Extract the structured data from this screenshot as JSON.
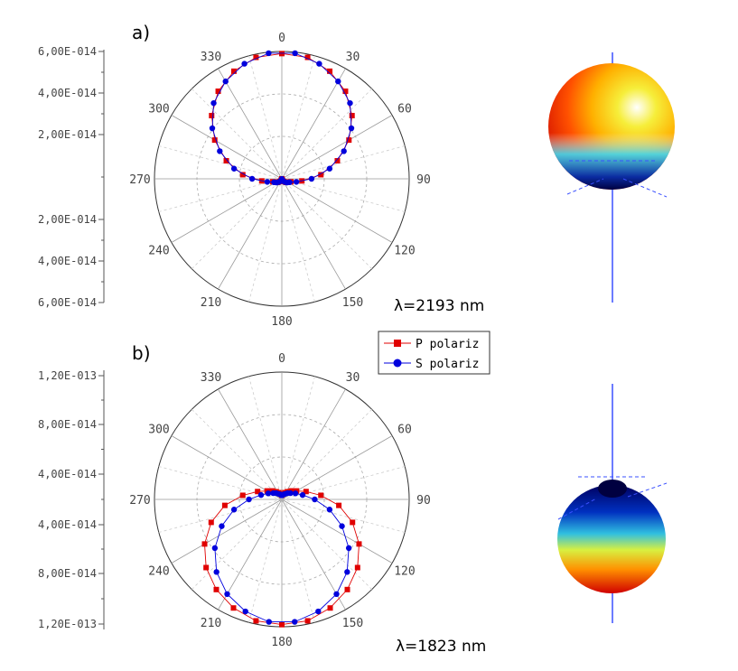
{
  "chart_data": [
    {
      "type": "polar",
      "panel_label": "a)",
      "wavelength_label": "λ=2193 nm",
      "angle_labels": [
        "0",
        "30",
        "60",
        "90",
        "120",
        "150",
        "180",
        "210",
        "240",
        "270",
        "300",
        "330"
      ],
      "radial_tick_labels_upper": [
        "6,00E-014",
        "4,00E-014",
        "2,00E-014"
      ],
      "radial_tick_labels_lower": [
        "2,00E-014",
        "4,00E-014",
        "6,00E-014"
      ],
      "r_max": 6e-14,
      "series": [
        {
          "name": "P polariz",
          "color": "#e00000",
          "marker": "square",
          "angles_deg": [
            0,
            12,
            24,
            36,
            48,
            60,
            72,
            84,
            96,
            108,
            120,
            132,
            144,
            156,
            168,
            180,
            192,
            204,
            216,
            228,
            240,
            252,
            264,
            276,
            288,
            300,
            312,
            324,
            336,
            348
          ],
          "values": [
            5.9e-14,
            5.85e-14,
            5.55e-14,
            5.1e-14,
            4.45e-14,
            3.65e-14,
            2.75e-14,
            1.85e-14,
            9.5e-15,
            4.5e-15,
            3e-15,
            2.5e-15,
            1.5e-15,
            8e-16,
            3e-16,
            0.0,
            3e-16,
            8e-16,
            1.5e-15,
            2.5e-15,
            3e-15,
            4.5e-15,
            9.5e-15,
            1.85e-14,
            2.75e-14,
            3.65e-14,
            4.45e-14,
            5.1e-14,
            5.55e-14,
            5.85e-14
          ]
        },
        {
          "name": "S polariz",
          "color": "#0000dd",
          "marker": "circle",
          "angles_deg": [
            6,
            18,
            30,
            42,
            54,
            66,
            78,
            90,
            102,
            114,
            126,
            138,
            150,
            162,
            174,
            186,
            198,
            210,
            222,
            234,
            246,
            258,
            270,
            282,
            294,
            306,
            318,
            330,
            342,
            354
          ],
          "values": [
            5.95e-14,
            5.7e-14,
            5.3e-14,
            4.8e-14,
            4.05e-14,
            3.2e-14,
            2.3e-14,
            1.4e-14,
            7e-15,
            4e-15,
            3e-15,
            2e-15,
            1.2e-15,
            5e-16,
            1e-16,
            1e-16,
            5e-16,
            1.2e-15,
            2e-15,
            3e-15,
            4e-15,
            7e-15,
            1.4e-14,
            2.3e-14,
            3.2e-14,
            4.05e-14,
            4.8e-14,
            5.3e-14,
            5.7e-14,
            5.95e-14
          ]
        }
      ]
    },
    {
      "type": "polar",
      "panel_label": "b)",
      "wavelength_label": "λ=1823 nm",
      "angle_labels": [
        "0",
        "30",
        "60",
        "90",
        "120",
        "150",
        "180",
        "210",
        "240",
        "270",
        "300",
        "330"
      ],
      "radial_tick_labels_upper": [
        "1,20E-013",
        "8,00E-014",
        "4,00E-014"
      ],
      "radial_tick_labels_lower": [
        "4,00E-014",
        "8,00E-014",
        "1,20E-013"
      ],
      "r_max": 1.2e-13,
      "series": [
        {
          "name": "P polariz",
          "color": "#e00000",
          "marker": "square",
          "angles_deg": [
            180,
            192,
            204,
            216,
            228,
            240,
            252,
            264,
            276,
            288,
            300,
            312,
            324,
            336,
            348,
            0,
            12,
            24,
            36,
            48,
            60,
            72,
            84,
            96,
            108,
            120,
            132,
            144,
            156,
            168
          ],
          "values": [
            1.18e-13,
            1.17e-13,
            1.12e-13,
            1.05e-13,
            9.6e-14,
            8.4e-14,
            7e-14,
            5.4e-14,
            3.7e-14,
            2.4e-14,
            1.6e-14,
            1.2e-14,
            9e-15,
            7e-15,
            5e-15,
            4e-15,
            5e-15,
            7e-15,
            9e-15,
            1.2e-14,
            1.6e-14,
            2.4e-14,
            3.7e-14,
            5.4e-14,
            7e-14,
            8.4e-14,
            9.6e-14,
            1.05e-13,
            1.12e-13,
            1.17e-13
          ]
        },
        {
          "name": "S polariz",
          "color": "#0000dd",
          "marker": "circle",
          "angles_deg": [
            174,
            186,
            198,
            210,
            222,
            234,
            246,
            258,
            270,
            282,
            294,
            306,
            318,
            330,
            342,
            354,
            6,
            18,
            30,
            42,
            54,
            66,
            78,
            90,
            102,
            114,
            126,
            138,
            150,
            162
          ],
          "values": [
            1.16e-13,
            1.16e-13,
            1.11e-13,
            1.03e-13,
            9.2e-14,
            7.8e-14,
            6.2e-14,
            4.6e-14,
            3.1e-14,
            2e-14,
            1.4e-14,
            1e-14,
            8e-15,
            6e-15,
            5e-15,
            4e-15,
            4e-15,
            5e-15,
            6e-15,
            8e-15,
            1e-14,
            1.4e-14,
            2e-14,
            3.1e-14,
            4.6e-14,
            6.2e-14,
            7.8e-14,
            9.2e-14,
            1.03e-13,
            1.11e-13
          ]
        }
      ]
    }
  ],
  "legend": {
    "p_label": "P polariz",
    "s_label": "S polariz"
  }
}
